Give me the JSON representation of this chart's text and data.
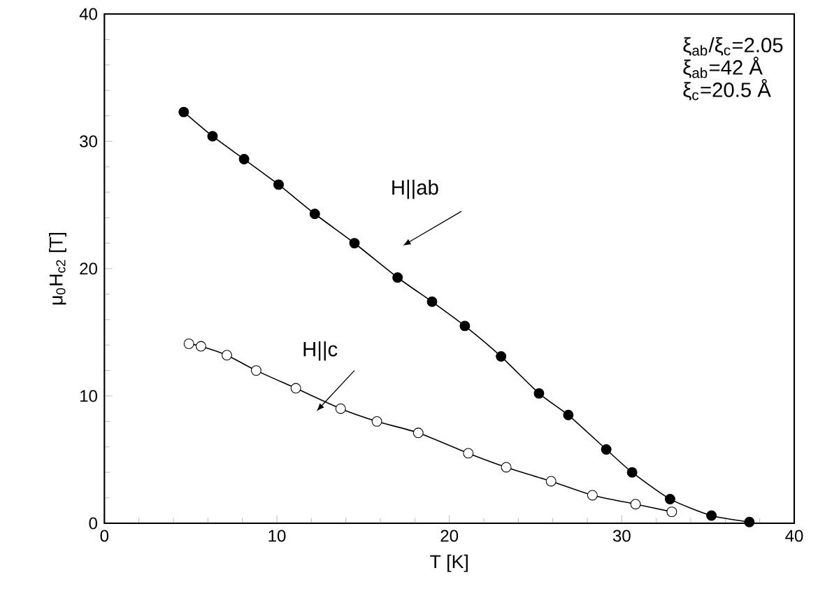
{
  "chart_data": {
    "type": "line",
    "xlabel": "T [K]",
    "ylabel": "μ$_{0}$H$_{c2}$ [T]",
    "xlim": [
      0,
      40
    ],
    "ylim": [
      0,
      40
    ],
    "xticks": [
      0,
      10,
      20,
      30,
      40
    ],
    "yticks": [
      0,
      10,
      20,
      30,
      40
    ],
    "marker": "circle",
    "line_style": "solid",
    "series": [
      {
        "color": "#000000",
        "x": [
          4.6,
          6.27,
          8.1,
          10.1,
          12.2,
          14.5,
          17.0,
          19.0,
          20.9,
          23.0,
          25.2,
          26.9,
          29.1,
          30.6,
          32.8,
          35.2,
          37.4
        ],
        "values": [
          32.3,
          30.4,
          28.6,
          26.6,
          24.3,
          22.0,
          19.3,
          17.4,
          15.5,
          13.1,
          10.2,
          8.5,
          5.8,
          4.0,
          1.9,
          0.6,
          0.1
        ]
      },
      {
        "color": "#000000",
        "colors": [
          "#ffffff",
          "#ffffff",
          "#ffffff",
          "#ffffff",
          "#ffffff",
          "#ffffff",
          "#ffffff",
          "#ffffff",
          "#ffffff",
          "#ffffff",
          "#ffffff",
          "#ffffff",
          "#ffffff",
          "#ffffff"
        ],
        "x": [
          4.9,
          5.6,
          7.1,
          8.8,
          11.1,
          13.7,
          15.8,
          18.2,
          21.1,
          23.3,
          25.9,
          28.3,
          30.8,
          32.9
        ],
        "values": [
          14.1,
          13.9,
          13.2,
          12.0,
          10.6,
          9.0,
          8.0,
          7.1,
          5.5,
          4.4,
          3.3,
          2.2,
          1.5,
          0.9
        ]
      }
    ],
    "annotations": [
      "H||ab",
      "H||c",
      "ξ$_{ab}$/ξ$_{c}$=2.05",
      "ξ$_{ab}$=42 Å",
      "ξ$_{c}$=20.5 Å"
    ]
  }
}
